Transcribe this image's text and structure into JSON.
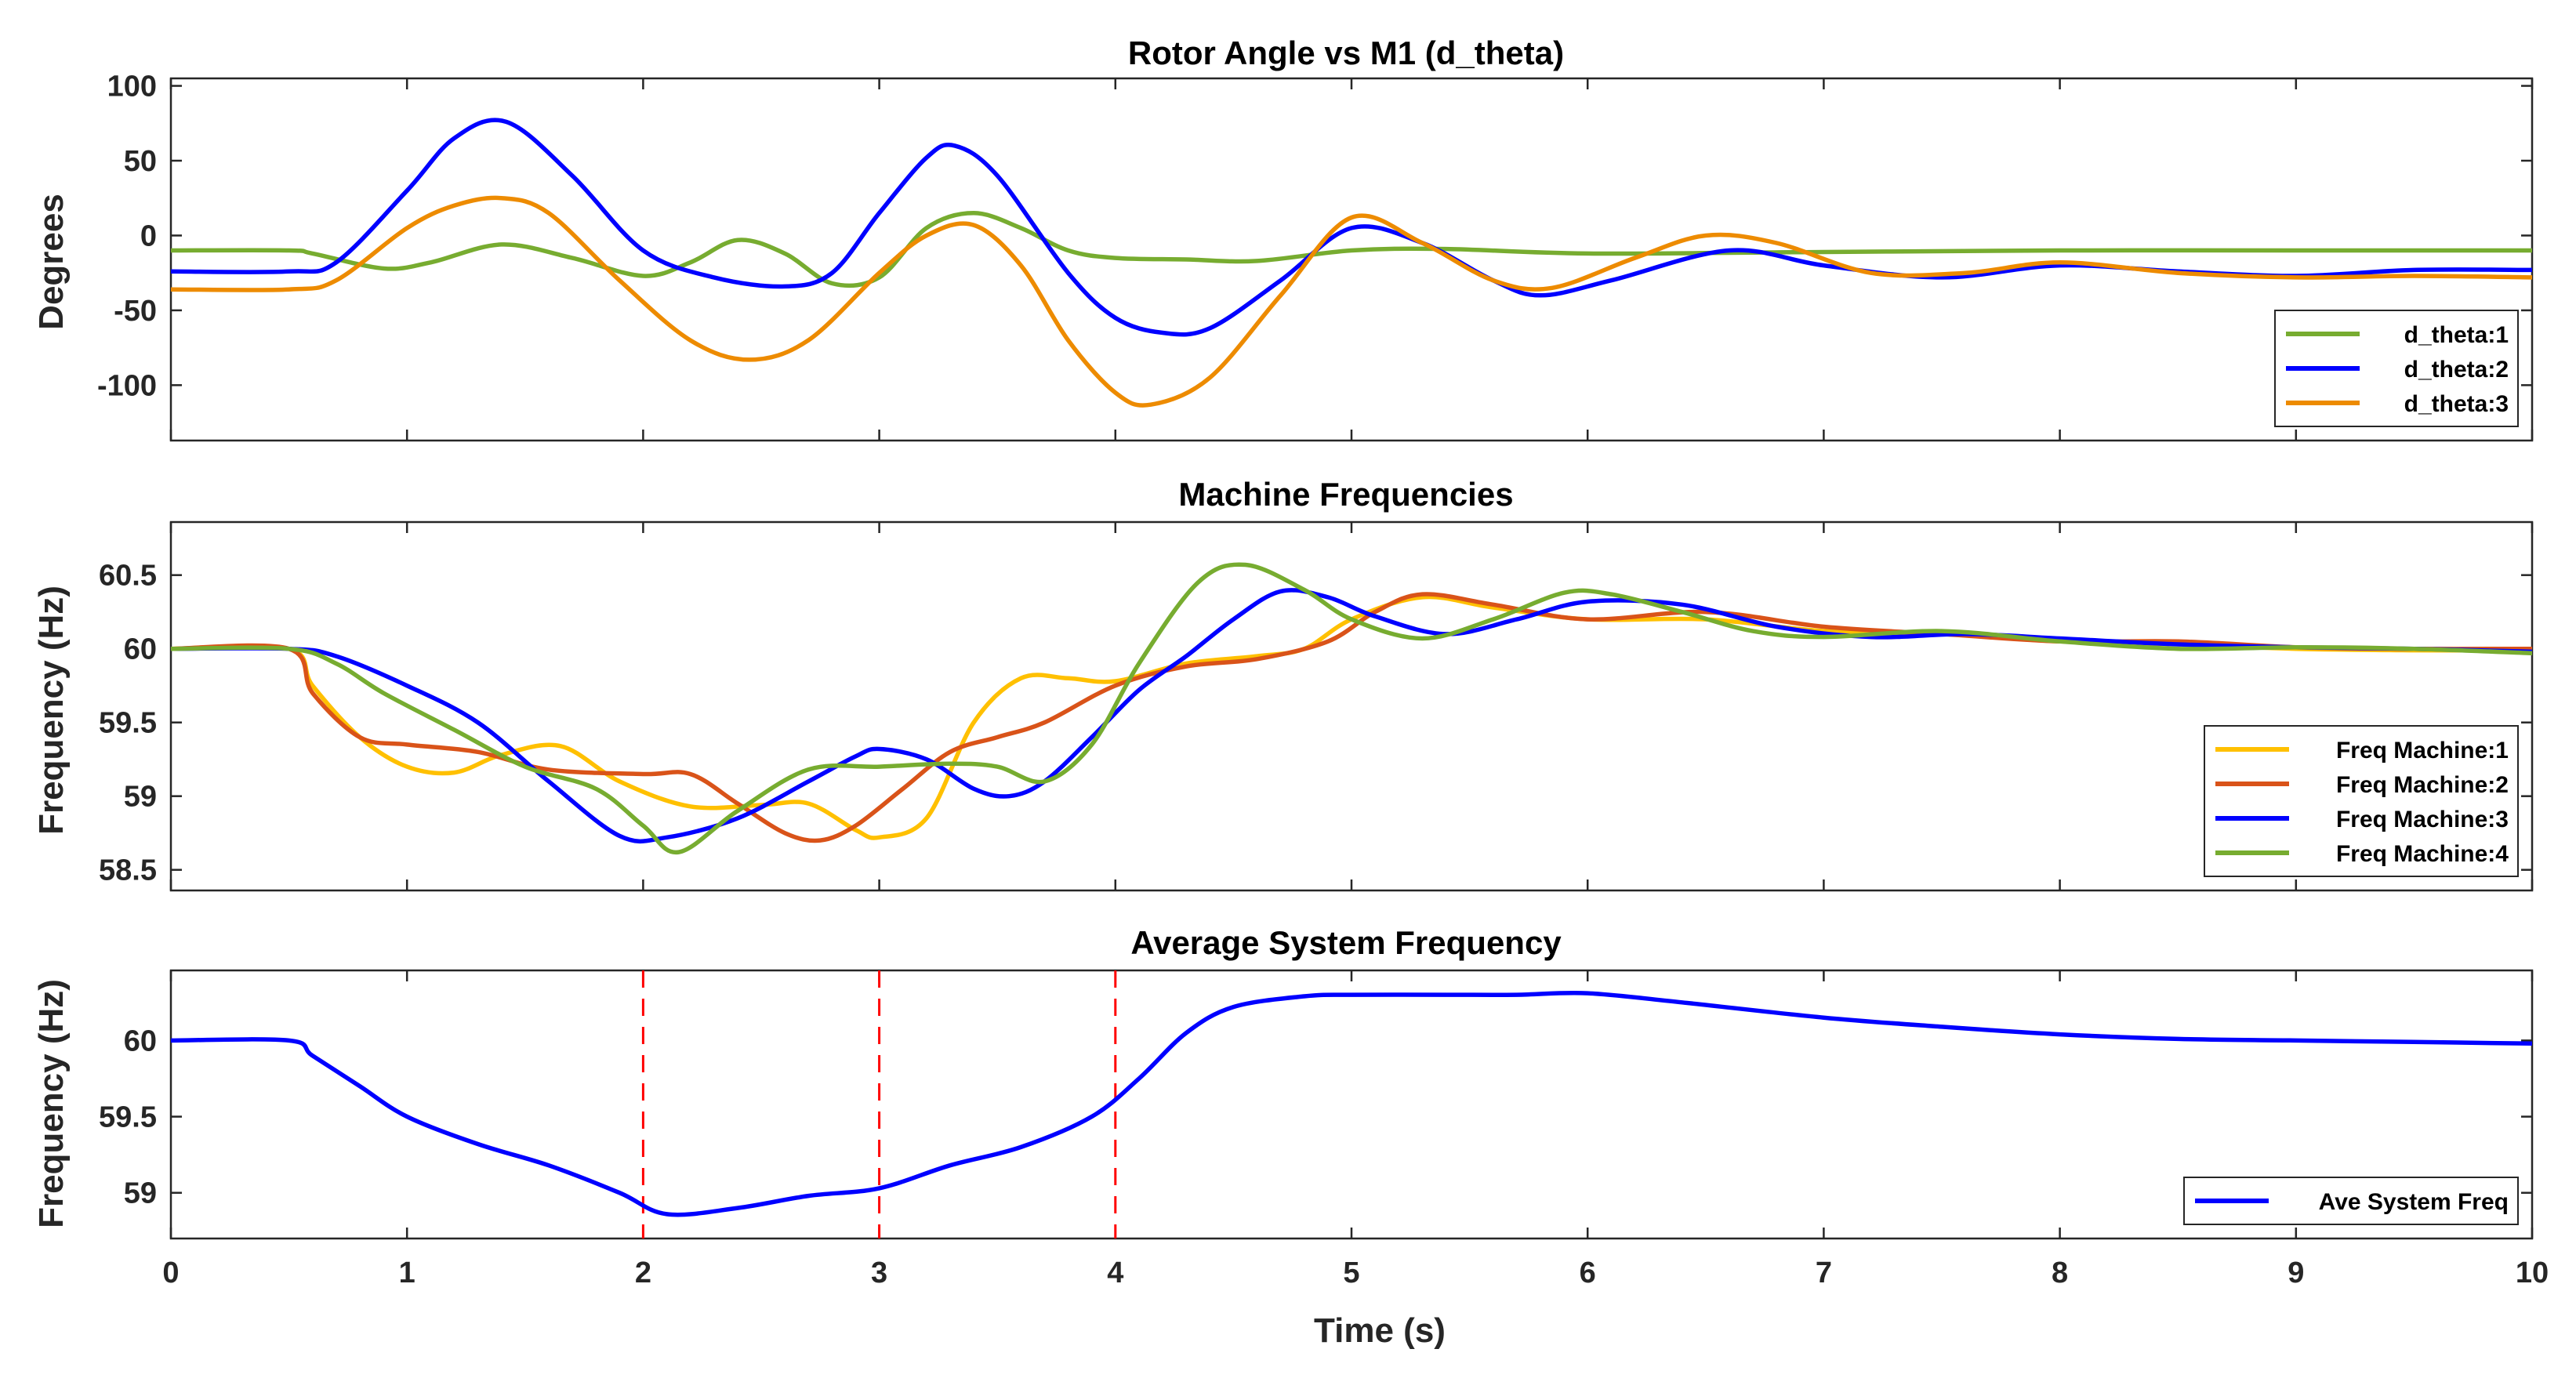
{
  "chart_data": [
    {
      "type": "line",
      "title": "Rotor Angle vs M1 (d_theta)",
      "ylabel": "Degrees",
      "xlabel": "",
      "xlim": [
        0,
        10
      ],
      "ylim": [
        -137,
        105
      ],
      "yticks": [
        100,
        50,
        0,
        -50,
        -100
      ],
      "ytick_labels": [
        "100",
        "50",
        "0",
        "-50",
        "-100"
      ],
      "legend_position": "bottom-right",
      "series": [
        {
          "name": "d_theta:1",
          "color": "#77ac30",
          "x": [
            0,
            0.5,
            0.6,
            0.9,
            1.1,
            1.4,
            1.7,
            2.0,
            2.2,
            2.4,
            2.6,
            2.8,
            3.0,
            3.2,
            3.4,
            3.6,
            3.8,
            4.0,
            4.3,
            4.6,
            5.0,
            5.4,
            6.0,
            7.0,
            8.0,
            9.0,
            10.0
          ],
          "y": [
            -10,
            -10,
            -12,
            -22,
            -18,
            -6,
            -15,
            -27,
            -18,
            -3,
            -12,
            -32,
            -28,
            5,
            15,
            5,
            -10,
            -15,
            -16,
            -17,
            -10,
            -9,
            -12,
            -11,
            -10,
            -10,
            -10
          ]
        },
        {
          "name": "d_theta:2",
          "color": "#0000ff",
          "x": [
            0,
            0.5,
            0.7,
            1.0,
            1.2,
            1.42,
            1.7,
            2.0,
            2.3,
            2.6,
            2.8,
            3.0,
            3.2,
            3.32,
            3.5,
            3.8,
            4.0,
            4.2,
            4.4,
            4.7,
            5.0,
            5.3,
            5.6,
            5.8,
            6.1,
            6.6,
            7.0,
            7.5,
            8.0,
            8.5,
            9.0,
            9.5,
            10.0
          ],
          "y": [
            -24,
            -24,
            -18,
            30,
            65,
            76,
            40,
            -10,
            -28,
            -34,
            -25,
            15,
            52,
            60,
            40,
            -25,
            -55,
            -65,
            -62,
            -30,
            5,
            -5,
            -30,
            -40,
            -30,
            -10,
            -20,
            -28,
            -20,
            -24,
            -27,
            -23,
            -23
          ]
        },
        {
          "name": "d_theta:3",
          "color": "#ed8b00",
          "x": [
            0,
            0.5,
            0.7,
            1.0,
            1.2,
            1.4,
            1.6,
            1.9,
            2.2,
            2.45,
            2.7,
            3.0,
            3.2,
            3.4,
            3.6,
            3.8,
            4.0,
            4.15,
            4.4,
            4.7,
            5.0,
            5.3,
            5.6,
            5.85,
            6.2,
            6.5,
            6.8,
            7.2,
            7.6,
            8.0,
            8.5,
            9.0,
            9.5,
            10.0
          ],
          "y": [
            -36,
            -36,
            -30,
            5,
            20,
            25,
            15,
            -30,
            -70,
            -83,
            -70,
            -25,
            0,
            7,
            -20,
            -70,
            -105,
            -113,
            -95,
            -40,
            12,
            -5,
            -30,
            -35,
            -15,
            0,
            -5,
            -25,
            -25,
            -18,
            -25,
            -28,
            -27,
            -28
          ]
        }
      ]
    },
    {
      "type": "line",
      "title": "Machine Frequencies",
      "ylabel": "Frequency (Hz)",
      "xlabel": "",
      "xlim": [
        0,
        10
      ],
      "ylim": [
        58.36,
        60.86
      ],
      "yticks": [
        60.5,
        60,
        59.5,
        59,
        58.5
      ],
      "ytick_labels": [
        "60.5",
        "60",
        "59.5",
        "59",
        "58.5"
      ],
      "legend_position": "bottom-right",
      "series": [
        {
          "name": "Freq Machine:1",
          "color": "#ffc000",
          "x": [
            0,
            0.5,
            0.6,
            0.8,
            1.0,
            1.2,
            1.4,
            1.65,
            1.9,
            2.2,
            2.5,
            2.7,
            2.9,
            3.0,
            3.2,
            3.4,
            3.6,
            3.8,
            4.0,
            4.3,
            4.6,
            4.8,
            5.0,
            5.3,
            5.6,
            6.0,
            6.5,
            7.0,
            7.5,
            8.0,
            8.5,
            9.0,
            9.5,
            10.0
          ],
          "y": [
            60,
            60,
            59.75,
            59.4,
            59.2,
            59.16,
            59.28,
            59.34,
            59.1,
            58.93,
            58.94,
            58.95,
            58.77,
            58.72,
            58.85,
            59.5,
            59.8,
            59.8,
            59.78,
            59.9,
            59.95,
            60.0,
            60.2,
            60.35,
            60.28,
            60.2,
            60.2,
            60.12,
            60.1,
            60.05,
            60.03,
            60.0,
            59.99,
            59.99
          ]
        },
        {
          "name": "Freq Machine:2",
          "color": "#d95319",
          "x": [
            0,
            0.5,
            0.6,
            0.8,
            1.0,
            1.3,
            1.6,
            2.0,
            2.2,
            2.4,
            2.6,
            2.75,
            2.9,
            3.1,
            3.3,
            3.5,
            3.7,
            4.0,
            4.3,
            4.6,
            4.9,
            5.1,
            5.3,
            5.6,
            6.0,
            6.5,
            7.0,
            7.5,
            8.0,
            8.5,
            9.0,
            9.5,
            10.0
          ],
          "y": [
            60,
            60,
            59.7,
            59.4,
            59.35,
            59.3,
            59.18,
            59.15,
            59.15,
            58.95,
            58.75,
            58.7,
            58.8,
            59.05,
            59.3,
            59.4,
            59.5,
            59.75,
            59.88,
            59.93,
            60.05,
            60.25,
            60.37,
            60.3,
            60.2,
            60.25,
            60.15,
            60.1,
            60.05,
            60.05,
            60.01,
            60.0,
            60.0
          ]
        },
        {
          "name": "Freq Machine:3",
          "color": "#0000ff",
          "x": [
            0,
            0.5,
            0.7,
            1.0,
            1.3,
            1.6,
            1.9,
            2.1,
            2.4,
            2.7,
            2.9,
            3.0,
            3.2,
            3.4,
            3.55,
            3.7,
            3.9,
            4.1,
            4.3,
            4.5,
            4.7,
            4.9,
            5.1,
            5.4,
            5.7,
            6.0,
            6.4,
            6.8,
            7.2,
            7.6,
            8.0,
            8.5,
            9.0,
            9.5,
            10.0
          ],
          "y": [
            60,
            60,
            59.95,
            59.75,
            59.5,
            59.1,
            58.73,
            58.72,
            58.85,
            59.1,
            59.27,
            59.32,
            59.25,
            59.05,
            59.0,
            59.1,
            59.4,
            59.72,
            59.95,
            60.2,
            60.39,
            60.35,
            60.22,
            60.1,
            60.2,
            60.32,
            60.3,
            60.15,
            60.08,
            60.1,
            60.07,
            60.03,
            60.01,
            60.0,
            59.98
          ]
        },
        {
          "name": "Freq Machine:4",
          "color": "#77ac30",
          "x": [
            0,
            0.5,
            0.7,
            0.9,
            1.2,
            1.5,
            1.8,
            2.0,
            2.15,
            2.4,
            2.7,
            3.0,
            3.3,
            3.5,
            3.7,
            3.9,
            4.1,
            4.35,
            4.55,
            4.8,
            5.0,
            5.3,
            5.6,
            5.9,
            6.1,
            6.4,
            6.7,
            7.0,
            7.5,
            8.0,
            8.5,
            9.0,
            9.5,
            10.0
          ],
          "y": [
            60,
            60,
            59.9,
            59.7,
            59.45,
            59.2,
            59.05,
            58.8,
            58.62,
            58.9,
            59.18,
            59.2,
            59.22,
            59.2,
            59.1,
            59.35,
            59.9,
            60.45,
            60.57,
            60.4,
            60.2,
            60.07,
            60.2,
            60.38,
            60.37,
            60.25,
            60.12,
            60.08,
            60.12,
            60.05,
            60.0,
            60.01,
            60.0,
            59.97
          ]
        }
      ]
    },
    {
      "type": "line",
      "title": "Average System Frequency",
      "ylabel": "Frequency (Hz)",
      "xlabel": "Time (s)",
      "xlim": [
        0,
        10
      ],
      "xticks": [
        0,
        1,
        2,
        3,
        4,
        5,
        6,
        7,
        8,
        9,
        10
      ],
      "xtick_labels": [
        "0",
        "1",
        "2",
        "3",
        "4",
        "5",
        "6",
        "7",
        "8",
        "9",
        "10"
      ],
      "ylim": [
        58.7,
        60.46
      ],
      "yticks": [
        60,
        59.5,
        59
      ],
      "ytick_labels": [
        "60",
        "59.5",
        "59"
      ],
      "legend_position": "bottom-right",
      "vertical_markers": [
        {
          "x": 2,
          "color": "#ff0000",
          "style": "dashed"
        },
        {
          "x": 3,
          "color": "#ff0000",
          "style": "dashed"
        },
        {
          "x": 4,
          "color": "#ff0000",
          "style": "dashed"
        }
      ],
      "series": [
        {
          "name": "Ave System Freq",
          "color": "#0000ff",
          "x": [
            0,
            0.5,
            0.6,
            0.8,
            1.0,
            1.3,
            1.6,
            1.9,
            2.1,
            2.4,
            2.7,
            3.0,
            3.3,
            3.6,
            3.9,
            4.1,
            4.3,
            4.5,
            4.8,
            5.0,
            5.4,
            5.7,
            6.0,
            6.4,
            7.0,
            7.5,
            8.0,
            8.5,
            9.0,
            9.5,
            10.0
          ],
          "y": [
            60,
            60,
            59.9,
            59.7,
            59.5,
            59.32,
            59.18,
            59.0,
            58.86,
            58.9,
            58.98,
            59.03,
            59.18,
            59.3,
            59.5,
            59.75,
            60.05,
            60.22,
            60.29,
            60.3,
            60.3,
            60.3,
            60.31,
            60.25,
            60.15,
            60.09,
            60.04,
            60.01,
            60.0,
            59.99,
            59.98
          ]
        }
      ]
    }
  ]
}
